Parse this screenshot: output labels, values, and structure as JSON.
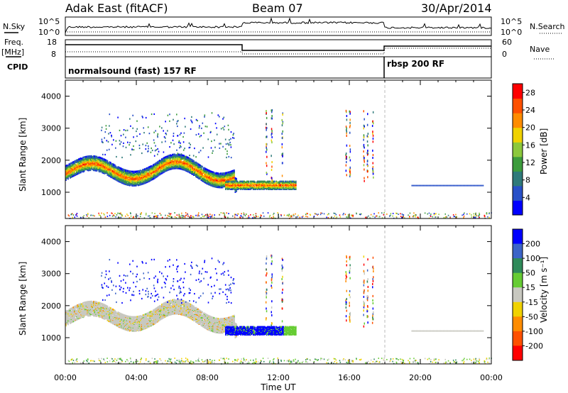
{
  "header": {
    "station": "Adak East (fitACF)",
    "beam": "Beam 07",
    "date": "30/Apr/2014"
  },
  "top_panels": {
    "nsky_label": "N.Sky",
    "nsearch_label": "N.Search",
    "nsky_ticks": [
      "10^5",
      "10^0"
    ],
    "nsearch_ticks": [
      "10^5",
      "10^0"
    ],
    "freq_label": "Freq.",
    "freq_unit": "[MHz]",
    "freq_ticks": [
      "18",
      "8"
    ],
    "nave_label": "Nave",
    "nave_ticks": [
      "60",
      "0"
    ],
    "cpid_label": "CPID",
    "cpid_segments": [
      "normalsound (fast) 157 RF",
      "rbsp 200 RF"
    ]
  },
  "colors": {
    "power_scale": [
      "#0000ff",
      "#2850c8",
      "#2f7a7a",
      "#3c9c3c",
      "#8cc83c",
      "#f0d200",
      "#ff8c00",
      "#ff5000",
      "#ff0000"
    ],
    "velocity_scale": [
      "#0000ff",
      "#3c64c8",
      "#2f8a5a",
      "#66cc33",
      "#c8c8c0",
      "#f0d200",
      "#ff8c00",
      "#ff5000",
      "#ff0000"
    ],
    "ground_scatter": "#c8c8c0"
  },
  "chart_data": [
    {
      "type": "heatmap",
      "panel": "power",
      "xlabel": "",
      "ylabel": "Slant Range [km]",
      "x_ticks": [
        "00:00",
        "04:00",
        "08:00",
        "12:00",
        "16:00",
        "20:00",
        "00:00"
      ],
      "xlim_hours": [
        0,
        24
      ],
      "ylim_km": [
        180,
        4500
      ],
      "y_ticks": [
        1000,
        2000,
        3000,
        4000
      ],
      "colorbar": {
        "label": "Power [dB]",
        "range": [
          0,
          30
        ],
        "ticks": [
          4,
          8,
          12,
          16,
          20,
          24,
          28
        ]
      },
      "features": [
        {
          "time_start_h": 0.0,
          "time_end_h": 9.5,
          "range_center_km": "1950-1400 sinuous band",
          "max_power_db": 28
        },
        {
          "time_start_h": 9.0,
          "time_end_h": 13.0,
          "range_center_km": 1250,
          "max_power_db": 24
        }
      ]
    },
    {
      "type": "heatmap",
      "panel": "velocity",
      "xlabel": "Time UT",
      "ylabel": "Slant Range [km]",
      "x_ticks": [
        "00:00",
        "04:00",
        "08:00",
        "12:00",
        "16:00",
        "20:00",
        "00:00"
      ],
      "xlim_hours": [
        0,
        24
      ],
      "ylim_km": [
        180,
        4500
      ],
      "y_ticks": [
        1000,
        2000,
        3000,
        4000
      ],
      "colorbar": {
        "label": "Velocity [m s⁻¹]",
        "range": [
          -250,
          250
        ],
        "ticks": [
          200,
          100,
          50,
          15,
          -15,
          -50,
          -100,
          -200
        ]
      }
    }
  ]
}
